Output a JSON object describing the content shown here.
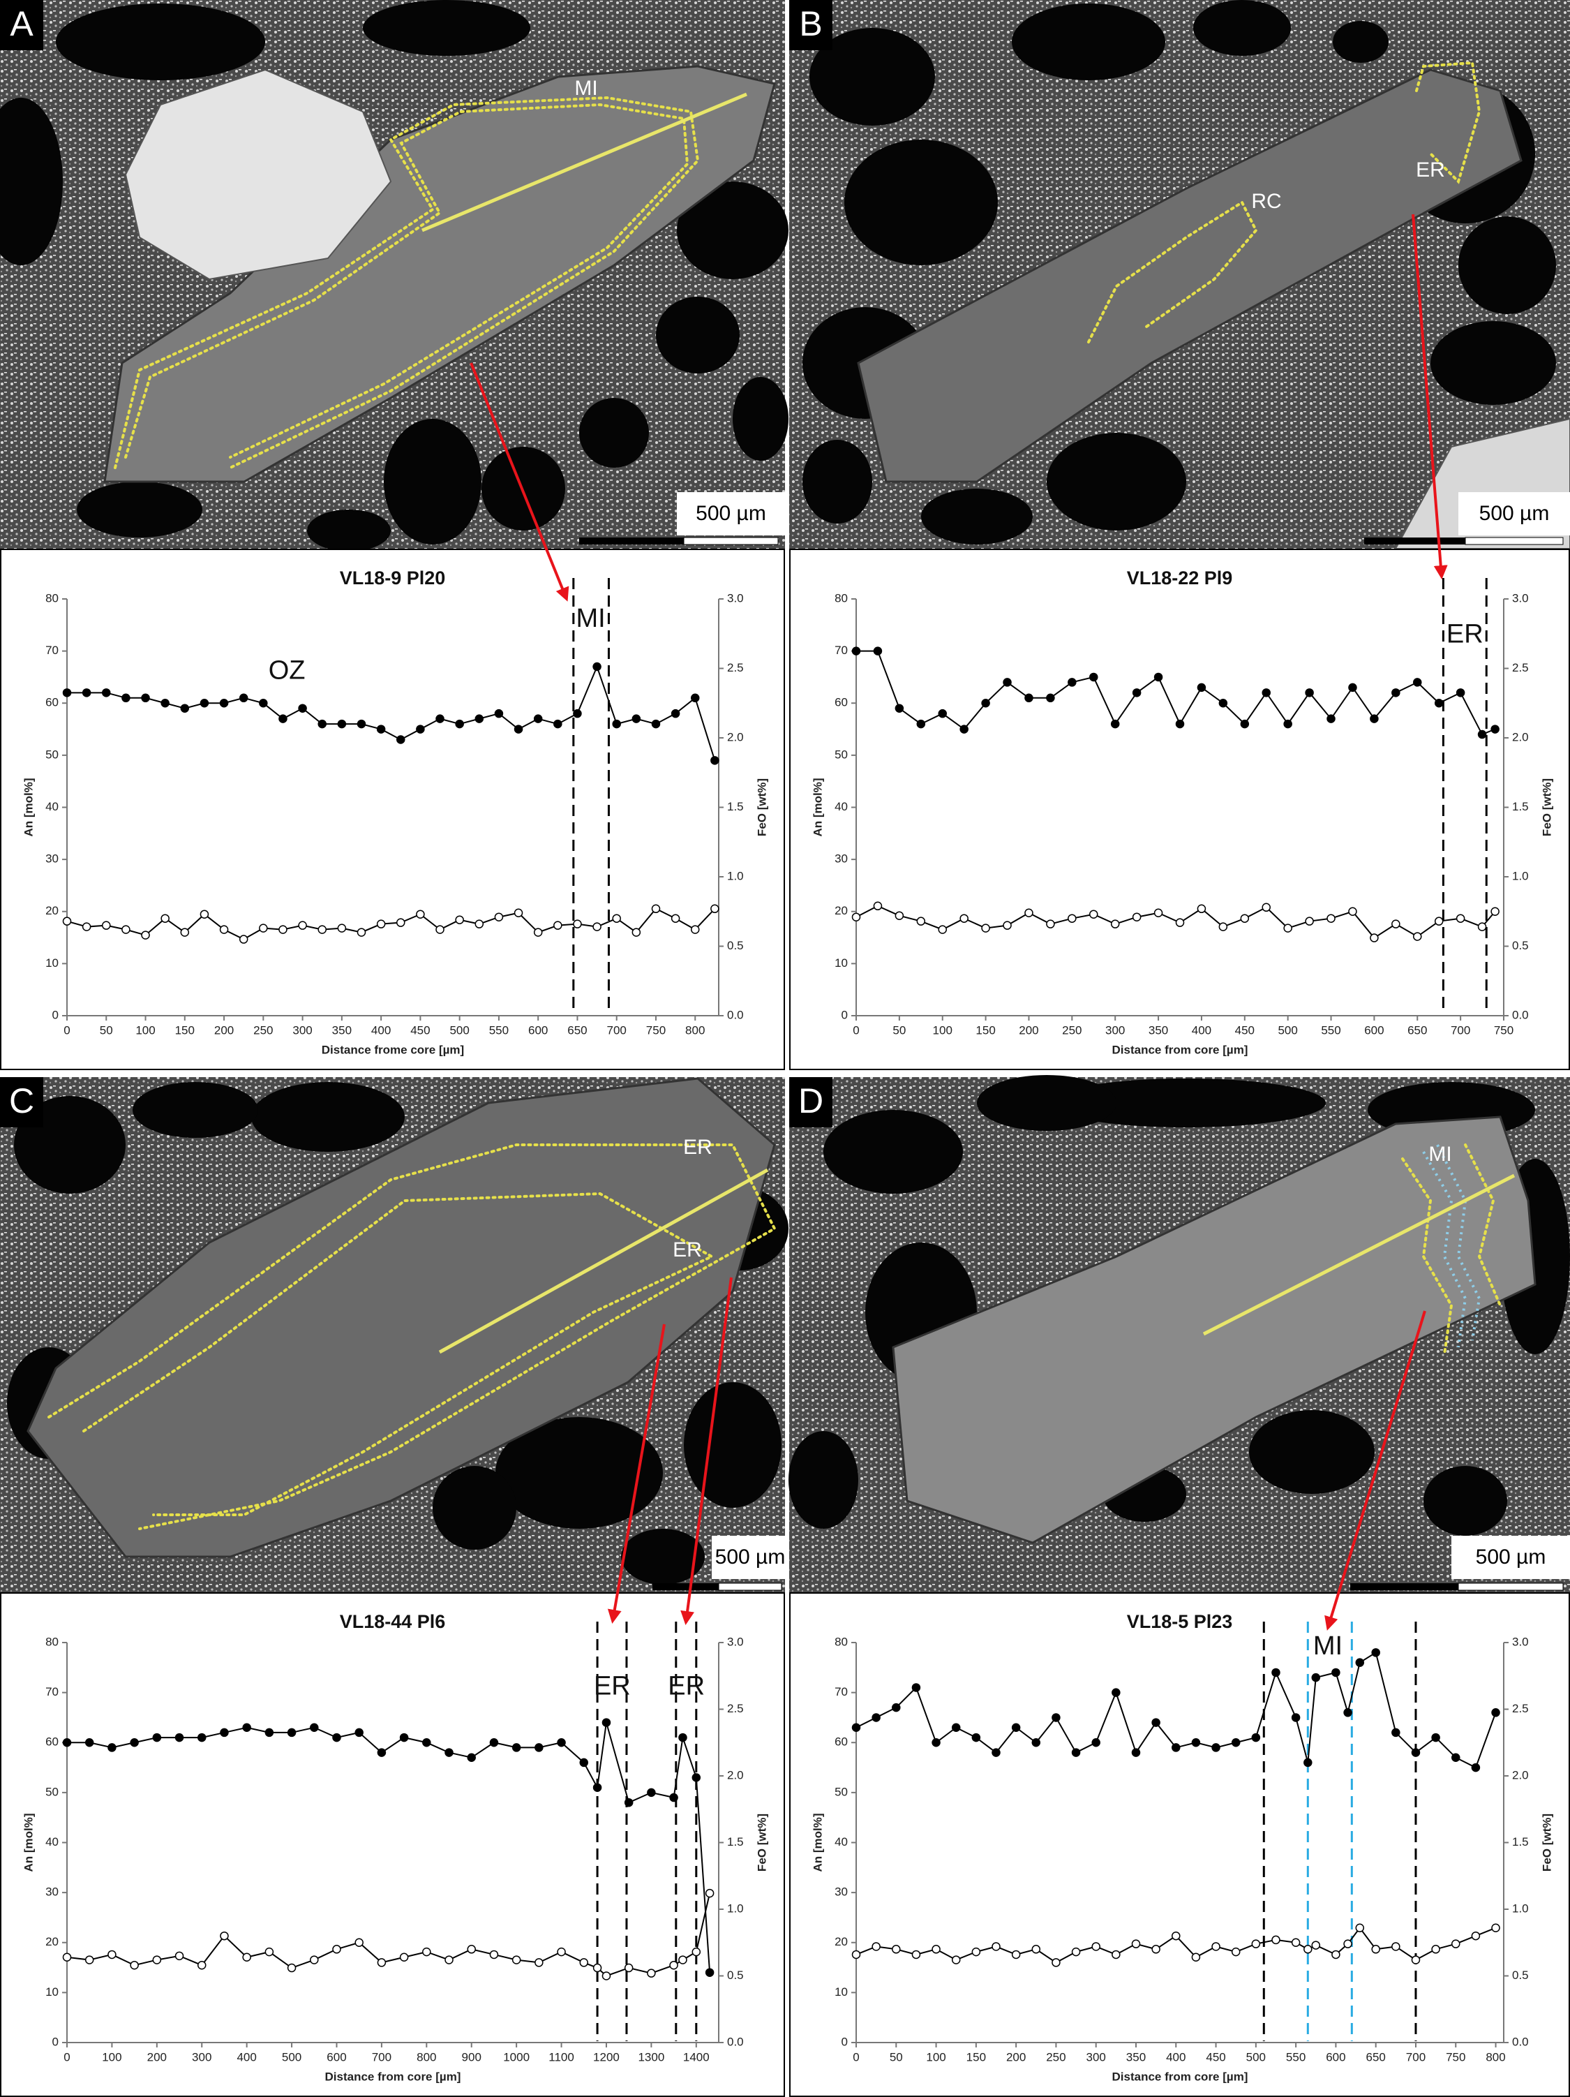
{
  "chart_data": [
    {
      "type": "line",
      "title": "VL18-9 Pl20",
      "xlabel": "Distance frome core [µm]",
      "ylabel": "An [mol%]",
      "y2label": "FeO [wt%]",
      "x": [
        0,
        25,
        50,
        75,
        100,
        125,
        150,
        175,
        200,
        225,
        250,
        275,
        300,
        325,
        350,
        375,
        400,
        425,
        450,
        475,
        500,
        525,
        550,
        575,
        600,
        625,
        650,
        675,
        700,
        725,
        750,
        775,
        800,
        825
      ],
      "xlim": [
        0,
        830
      ],
      "xticks": [
        0,
        50,
        100,
        150,
        200,
        250,
        300,
        350,
        400,
        450,
        500,
        550,
        600,
        650,
        700,
        750,
        800
      ],
      "ylim": [
        0,
        80
      ],
      "yticks": [
        0,
        10,
        20,
        30,
        40,
        50,
        60,
        70,
        80
      ],
      "y2lim": [
        0,
        3
      ],
      "y2ticks": [
        {
          "value": 0,
          "label": "0.0"
        },
        0.5,
        {
          "value": 1,
          "label": "1.0"
        },
        1.5,
        {
          "value": 2,
          "label": "2.0"
        },
        2.5,
        {
          "value": 3,
          "label": "3.0"
        }
      ],
      "series": [
        {
          "color": "#000000",
          "marker_fill": "#000000",
          "values": [
            62,
            62,
            62,
            61,
            61,
            60,
            59,
            60,
            60,
            61,
            60,
            57,
            59,
            56,
            56,
            56,
            55,
            53,
            55,
            57,
            56,
            57,
            58,
            55,
            57,
            56,
            58,
            67,
            56,
            57,
            56,
            58,
            61,
            49
          ]
        },
        {
          "color": "#000000",
          "marker_fill": "#ffffff",
          "axis": "y2",
          "values": [
            0.68,
            0.64,
            0.65,
            0.62,
            0.58,
            0.7,
            0.6,
            0.73,
            0.62,
            0.55,
            0.63,
            0.62,
            0.65,
            0.62,
            0.63,
            0.6,
            0.66,
            0.67,
            0.73,
            0.62,
            0.69,
            0.66,
            0.71,
            0.74,
            0.6,
            0.65,
            0.66,
            0.64,
            0.7,
            0.6,
            0.77,
            0.7,
            0.62,
            0.77
          ]
        }
      ],
      "vlines": [
        {
          "x": 645,
          "color": "#000000"
        },
        {
          "x": 690,
          "color": "#000000"
        }
      ],
      "annotations": [
        "OZ",
        "MI"
      ]
    },
    {
      "type": "line",
      "title": "VL18-22 Pl9",
      "xlabel": "Distance from core [µm]",
      "ylabel": "An [mol%]",
      "y2label": "FeO [wt%]",
      "x": [
        0,
        25,
        50,
        75,
        100,
        125,
        150,
        175,
        200,
        225,
        250,
        275,
        300,
        325,
        350,
        375,
        400,
        425,
        450,
        475,
        500,
        525,
        550,
        575,
        600,
        625,
        650,
        675,
        700,
        725,
        740
      ],
      "xlim": [
        0,
        750
      ],
      "xticks": [
        0,
        50,
        100,
        150,
        200,
        250,
        300,
        350,
        400,
        450,
        500,
        550,
        600,
        650,
        700,
        750
      ],
      "ylim": [
        0,
        80
      ],
      "yticks": [
        0,
        10,
        20,
        30,
        40,
        50,
        60,
        70,
        80
      ],
      "y2lim": [
        0,
        3
      ],
      "y2ticks": [
        {
          "value": 0,
          "label": "0.0"
        },
        0.5,
        {
          "value": 1,
          "label": "1.0"
        },
        1.5,
        {
          "value": 2,
          "label": "2.0"
        },
        2.5,
        {
          "value": 3,
          "label": "3.0"
        }
      ],
      "series": [
        {
          "color": "#000000",
          "marker_fill": "#000000",
          "values": [
            70,
            70,
            59,
            56,
            58,
            55,
            60,
            64,
            61,
            61,
            64,
            65,
            56,
            62,
            65,
            56,
            63,
            60,
            56,
            62,
            56,
            62,
            57,
            63,
            57,
            62,
            64,
            60,
            62,
            54,
            55
          ]
        },
        {
          "color": "#000000",
          "marker_fill": "#ffffff",
          "axis": "y2",
          "values": [
            0.71,
            0.79,
            0.72,
            0.68,
            0.62,
            0.7,
            0.63,
            0.65,
            0.74,
            0.66,
            0.7,
            0.73,
            0.66,
            0.71,
            0.74,
            0.67,
            0.77,
            0.64,
            0.7,
            0.78,
            0.63,
            0.68,
            0.7,
            0.75,
            0.56,
            0.66,
            0.57,
            0.68,
            0.7,
            0.64,
            0.75
          ]
        }
      ],
      "vlines": [
        {
          "x": 680,
          "color": "#000000"
        },
        {
          "x": 730,
          "color": "#000000"
        }
      ],
      "annotations": [
        "ER"
      ]
    },
    {
      "type": "line",
      "title": "VL18-44 Pl6",
      "xlabel": "Distance from core [µm]",
      "ylabel": "An [mol%]",
      "y2label": "FeO [wt%]",
      "x": [
        0,
        50,
        100,
        150,
        200,
        250,
        300,
        350,
        400,
        450,
        500,
        550,
        600,
        650,
        700,
        750,
        800,
        850,
        900,
        950,
        1000,
        1050,
        1100,
        1150,
        1180,
        1200,
        1250,
        1300,
        1350,
        1370,
        1400,
        1430
      ],
      "xlim": [
        0,
        1450
      ],
      "xticks": [
        0,
        100,
        200,
        300,
        400,
        500,
        600,
        700,
        800,
        900,
        1000,
        1100,
        1200,
        1300,
        1400
      ],
      "ylim": [
        0,
        80
      ],
      "yticks": [
        0,
        10,
        20,
        30,
        40,
        50,
        60,
        70,
        80
      ],
      "y2lim": [
        0,
        3
      ],
      "y2ticks": [
        {
          "value": 0,
          "label": "0.0"
        },
        0.5,
        {
          "value": 1,
          "label": "1.0"
        },
        1.5,
        {
          "value": 2,
          "label": "2.0"
        },
        2.5,
        {
          "value": 3,
          "label": "3.0"
        }
      ],
      "series": [
        {
          "color": "#000000",
          "marker_fill": "#000000",
          "values": [
            60,
            60,
            59,
            60,
            61,
            61,
            61,
            62,
            63,
            62,
            62,
            63,
            61,
            62,
            58,
            61,
            60,
            58,
            57,
            60,
            59,
            59,
            60,
            56,
            51,
            64,
            48,
            50,
            49,
            61,
            53,
            14
          ]
        },
        {
          "color": "#000000",
          "marker_fill": "#ffffff",
          "axis": "y2",
          "values": [
            0.64,
            0.62,
            0.66,
            0.58,
            0.62,
            0.65,
            0.58,
            0.8,
            0.64,
            0.68,
            0.56,
            0.62,
            0.7,
            0.75,
            0.6,
            0.64,
            0.68,
            0.62,
            0.7,
            0.66,
            0.62,
            0.6,
            0.68,
            0.6,
            0.56,
            0.5,
            0.56,
            0.52,
            0.58,
            0.62,
            0.68,
            1.12
          ]
        }
      ],
      "vlines": [
        {
          "x": 1180,
          "color": "#000000"
        },
        {
          "x": 1245,
          "color": "#000000"
        },
        {
          "x": 1355,
          "color": "#000000"
        },
        {
          "x": 1400,
          "color": "#000000"
        }
      ],
      "annotations": [
        "ER",
        "ER"
      ]
    },
    {
      "type": "line",
      "title": "VL18-5 Pl23",
      "xlabel": "Distance from core [µm]",
      "ylabel": "An [mol%]",
      "y2label": "FeO [wt%]",
      "x": [
        0,
        25,
        50,
        75,
        100,
        125,
        150,
        175,
        200,
        225,
        250,
        275,
        300,
        325,
        350,
        375,
        400,
        425,
        450,
        475,
        500,
        525,
        550,
        565,
        575,
        600,
        615,
        630,
        650,
        675,
        700,
        725,
        750,
        775,
        800
      ],
      "xlim": [
        0,
        810
      ],
      "xticks": [
        0,
        50,
        100,
        150,
        200,
        250,
        300,
        350,
        400,
        450,
        500,
        550,
        600,
        650,
        700,
        750,
        800
      ],
      "ylim": [
        0,
        80
      ],
      "yticks": [
        0,
        10,
        20,
        30,
        40,
        50,
        60,
        70,
        80
      ],
      "y2lim": [
        0,
        3
      ],
      "y2ticks": [
        {
          "value": 0,
          "label": "0.0"
        },
        0.5,
        {
          "value": 1,
          "label": "1.0"
        },
        1.5,
        {
          "value": 2,
          "label": "2.0"
        },
        2.5,
        {
          "value": 3,
          "label": "3.0"
        }
      ],
      "series": [
        {
          "color": "#000000",
          "marker_fill": "#000000",
          "values": [
            63,
            65,
            67,
            71,
            60,
            63,
            61,
            58,
            63,
            60,
            65,
            58,
            60,
            70,
            58,
            64,
            59,
            60,
            59,
            60,
            61,
            74,
            65,
            56,
            73,
            74,
            66,
            76,
            78,
            62,
            58,
            61,
            57,
            55,
            66
          ]
        },
        {
          "color": "#000000",
          "marker_fill": "#ffffff",
          "axis": "y2",
          "values": [
            0.66,
            0.72,
            0.7,
            0.66,
            0.7,
            0.62,
            0.68,
            0.72,
            0.66,
            0.7,
            0.6,
            0.68,
            0.72,
            0.66,
            0.74,
            0.7,
            0.8,
            0.64,
            0.72,
            0.68,
            0.74,
            0.77,
            0.75,
            0.7,
            0.73,
            0.66,
            0.74,
            0.86,
            0.7,
            0.72,
            0.62,
            0.7,
            0.74,
            0.8,
            0.86
          ]
        }
      ],
      "vlines": [
        {
          "x": 510,
          "color": "#000000"
        },
        {
          "x": 565,
          "color": "#29abe2"
        },
        {
          "x": 620,
          "color": "#29abe2"
        },
        {
          "x": 700,
          "color": "#000000"
        }
      ],
      "annotations": [
        "MI"
      ]
    }
  ],
  "images": [
    {
      "letter": "A",
      "scale_bar": "500 µm",
      "labels": [
        "MI"
      ]
    },
    {
      "letter": "B",
      "scale_bar": "500 µm",
      "labels": [
        "RC",
        "ER"
      ]
    },
    {
      "letter": "C",
      "scale_bar": "500 µm",
      "labels": [
        "ER",
        "ER"
      ]
    },
    {
      "letter": "D",
      "scale_bar": "500 µm",
      "labels": [
        "MI"
      ]
    }
  ]
}
